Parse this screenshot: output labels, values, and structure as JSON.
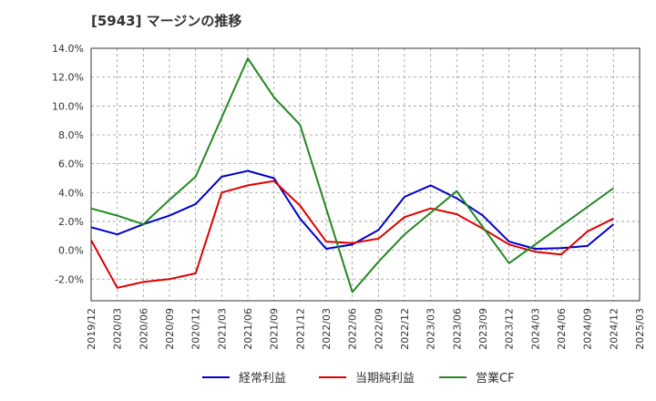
{
  "chart_data": {
    "type": "line",
    "title": "[5943]  マージンの推移",
    "xlabel": "",
    "ylabel": "",
    "ylim": [
      -3.5,
      14.0
    ],
    "grid": true,
    "legend_position": "bottom",
    "x": [
      "2019/12",
      "2020/03",
      "2020/06",
      "2020/09",
      "2020/12",
      "2021/03",
      "2021/06",
      "2021/09",
      "2021/12",
      "2022/03",
      "2022/06",
      "2022/09",
      "2022/12",
      "2023/03",
      "2023/06",
      "2023/09",
      "2023/12",
      "2024/03",
      "2024/06",
      "2024/09",
      "2024/12",
      "2025/03"
    ],
    "y_ticks": [
      -2.0,
      0.0,
      2.0,
      4.0,
      6.0,
      8.0,
      10.0,
      12.0,
      14.0
    ],
    "y_tick_labels": [
      "-2.0%",
      "0.0%",
      "2.0%",
      "4.0%",
      "6.0%",
      "8.0%",
      "10.0%",
      "12.0%",
      "14.0%"
    ],
    "series": [
      {
        "name": "経常利益",
        "color": "#0000cc",
        "values": [
          1.6,
          1.1,
          1.8,
          2.4,
          3.2,
          5.1,
          5.5,
          5.0,
          2.2,
          0.1,
          0.4,
          1.4,
          3.7,
          4.5,
          3.6,
          2.4,
          0.6,
          0.1,
          0.15,
          0.3,
          1.8,
          null
        ]
      },
      {
        "name": "当期純利益",
        "color": "#dd0000",
        "values": [
          0.7,
          -2.6,
          -2.2,
          -2.0,
          -1.6,
          4.0,
          4.5,
          4.8,
          3.1,
          0.6,
          0.5,
          0.8,
          2.3,
          2.9,
          2.5,
          1.5,
          0.4,
          -0.1,
          -0.3,
          1.3,
          2.2,
          null
        ]
      },
      {
        "name": "営業CF",
        "color": "#228822",
        "values": [
          2.9,
          2.4,
          1.8,
          3.5,
          5.1,
          9.2,
          13.3,
          10.6,
          8.7,
          2.9,
          -2.9,
          -0.8,
          1.1,
          2.6,
          4.1,
          1.6,
          -0.9,
          0.4,
          1.7,
          3.0,
          4.3,
          null
        ]
      }
    ]
  }
}
